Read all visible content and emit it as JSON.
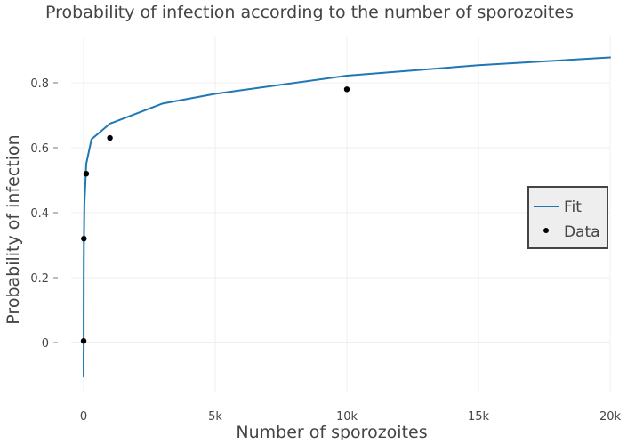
{
  "chart_data": {
    "type": "line",
    "title": "Probability of infection according to the number of sporozoites",
    "xlabel": "Number of sporozoites",
    "ylabel": "Probability of infection",
    "xlim": [
      -700,
      20000
    ],
    "ylim": [
      -0.13,
      0.95
    ],
    "x_ticks": [
      0,
      5000,
      10000,
      15000,
      20000
    ],
    "x_tick_labels": [
      "0",
      "5k",
      "10k",
      "15k",
      "20k"
    ],
    "y_ticks": [
      0,
      0.2,
      0.4,
      0.6,
      0.8
    ],
    "y_tick_labels": [
      "0",
      "0.2",
      "0.4",
      "0.6",
      "0.8"
    ],
    "grid": true,
    "legend_position": "right",
    "series": [
      {
        "name": "Fit",
        "kind": "line",
        "color": "#1f77b4",
        "x": [
          1,
          5,
          10,
          30,
          100,
          300,
          1000,
          3000,
          5000,
          10000,
          15000,
          20000
        ],
        "y": [
          -0.105,
          0.18,
          0.302,
          0.424,
          0.55,
          0.626,
          0.674,
          0.736,
          0.766,
          0.822,
          0.854,
          0.878
        ]
      },
      {
        "name": "Data",
        "kind": "scatter",
        "color": "#000000",
        "x": [
          1,
          10,
          100,
          1000,
          10000
        ],
        "y": [
          0.005,
          0.32,
          0.52,
          0.63,
          0.78
        ]
      }
    ]
  }
}
